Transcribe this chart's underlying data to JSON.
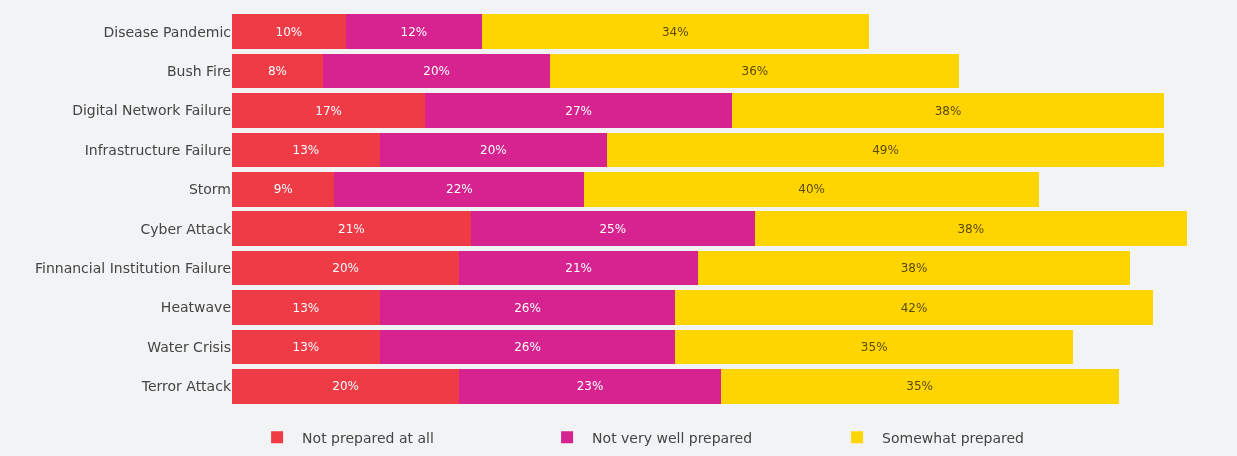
{
  "chart_data": {
    "type": "bar",
    "orientation": "horizontal",
    "stacked": true,
    "legend": "bottom",
    "grid": false,
    "categories": [
      "Disease Pandemic",
      "Bush Fire",
      "Digital Network Failure",
      "Infrastructure Failure",
      "Storm",
      "Cyber Attack",
      "Finnancial Institution Failure",
      "Heatwave",
      "Water Crisis",
      "Terror Attack"
    ],
    "series": [
      {
        "name": "Not prepared at all",
        "color": "#ef3b46",
        "values": [
          10,
          8,
          17,
          13,
          9,
          21,
          20,
          13,
          13,
          20
        ],
        "value_labels": [
          "10%",
          "8%",
          "17%",
          "13%",
          "9%",
          "21%",
          "20%",
          "13%",
          "13%",
          "20%"
        ]
      },
      {
        "name": "Not very well prepared",
        "color": "#d6238f",
        "values": [
          12,
          20,
          27,
          20,
          22,
          25,
          21,
          26,
          26,
          23
        ],
        "value_labels": [
          "12%",
          "20%",
          "27%",
          "20%",
          "22%",
          "25%",
          "21%",
          "26%",
          "26%",
          "23%"
        ]
      },
      {
        "name": "Somewhat prepared",
        "color": "#ffd500",
        "values": [
          34,
          36,
          38,
          49,
          40,
          38,
          38,
          42,
          35,
          35
        ],
        "value_labels": [
          "34%",
          "36%",
          "38%",
          "49%",
          "40%",
          "38%",
          "38%",
          "42%",
          "35%",
          "35%"
        ]
      }
    ]
  }
}
